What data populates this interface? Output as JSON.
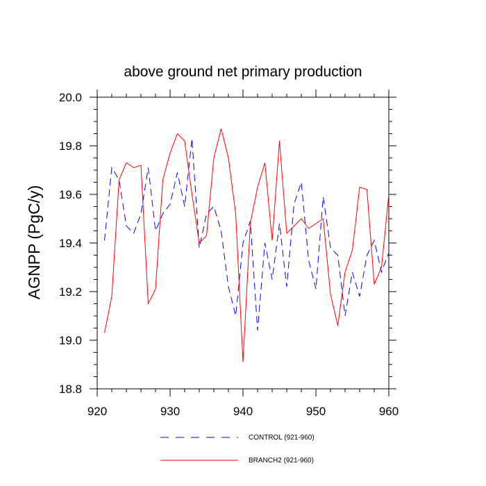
{
  "chart_data": {
    "type": "line",
    "title": "above ground net primary production",
    "xlabel": "",
    "ylabel": "AGNPP  (PgC/y)",
    "xlim": [
      920,
      960
    ],
    "ylim": [
      18.8,
      20.0
    ],
    "x_ticks": [
      920,
      930,
      940,
      950,
      960
    ],
    "x_tick_labels": [
      "920",
      "930",
      "940",
      "950",
      "960"
    ],
    "y_ticks": [
      18.8,
      19.0,
      19.2,
      19.4,
      19.6,
      19.8,
      20.0
    ],
    "y_tick_labels": [
      "18.8",
      "19.0",
      "19.2",
      "19.4",
      "19.6",
      "19.8",
      "20.0"
    ],
    "x_minor_step": 2,
    "y_minor_step": 0.05,
    "legend_position": "bottom",
    "series": [
      {
        "name": "CONTROL (921-960)",
        "color": "#0000ff",
        "style": "dashed",
        "x": [
          921,
          922,
          923,
          924,
          925,
          926,
          927,
          928,
          929,
          930,
          931,
          932,
          933,
          934,
          935,
          936,
          937,
          938,
          939,
          940,
          941,
          942,
          943,
          944,
          945,
          946,
          947,
          948,
          949,
          950,
          951,
          952,
          953,
          954,
          955,
          956,
          957,
          958,
          959,
          960
        ],
        "values": [
          19.41,
          19.71,
          19.66,
          19.47,
          19.44,
          19.52,
          19.71,
          19.45,
          19.52,
          19.56,
          19.69,
          19.55,
          19.83,
          19.38,
          19.52,
          19.55,
          19.45,
          19.22,
          19.1,
          19.4,
          19.49,
          19.04,
          19.4,
          19.25,
          19.48,
          19.22,
          19.56,
          19.65,
          19.33,
          19.21,
          19.59,
          19.38,
          19.35,
          19.1,
          19.28,
          19.18,
          19.35,
          19.41,
          19.28,
          19.36
        ]
      },
      {
        "name": "BRANCH2 (921-960)",
        "color": "#ff0000",
        "style": "solid",
        "x": [
          921,
          922,
          923,
          924,
          925,
          926,
          927,
          928,
          929,
          930,
          931,
          932,
          933,
          934,
          935,
          936,
          937,
          938,
          939,
          940,
          941,
          942,
          943,
          944,
          945,
          946,
          947,
          948,
          949,
          950,
          951,
          952,
          953,
          954,
          955,
          956,
          957,
          958,
          959,
          960
        ],
        "values": [
          19.03,
          19.18,
          19.66,
          19.73,
          19.71,
          19.72,
          19.15,
          19.21,
          19.66,
          19.77,
          19.85,
          19.82,
          19.6,
          19.4,
          19.43,
          19.75,
          19.87,
          19.75,
          19.52,
          18.91,
          19.48,
          19.63,
          19.73,
          19.41,
          19.82,
          19.44,
          19.47,
          19.5,
          19.46,
          19.48,
          19.5,
          19.19,
          19.06,
          19.28,
          19.37,
          19.63,
          19.62,
          19.23,
          19.3,
          19.6
        ]
      }
    ]
  }
}
